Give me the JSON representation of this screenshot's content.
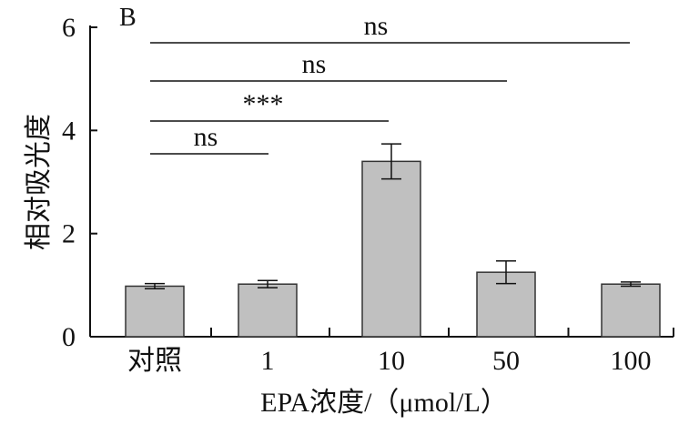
{
  "chart_data": {
    "type": "bar",
    "panel_label": "B",
    "xlabel": "EPA浓度/（μmol/L）",
    "ylabel": "相对吸光度",
    "ylim": [
      0,
      6
    ],
    "yticks": [
      0,
      2,
      4,
      6
    ],
    "categories": [
      "对照",
      "1",
      "10",
      "50",
      "100"
    ],
    "values": [
      0.98,
      1.02,
      3.4,
      1.25,
      1.02
    ],
    "error": [
      0.05,
      0.07,
      0.34,
      0.22,
      0.04
    ],
    "bar_color": "#c0c0c0",
    "bar_edge_color": "#333333",
    "significance": [
      {
        "from": 0,
        "to": 1,
        "label": "ns"
      },
      {
        "from": 0,
        "to": 2,
        "label": "***"
      },
      {
        "from": 0,
        "to": 3,
        "label": "ns"
      },
      {
        "from": 0,
        "to": 4,
        "label": "ns"
      }
    ]
  }
}
